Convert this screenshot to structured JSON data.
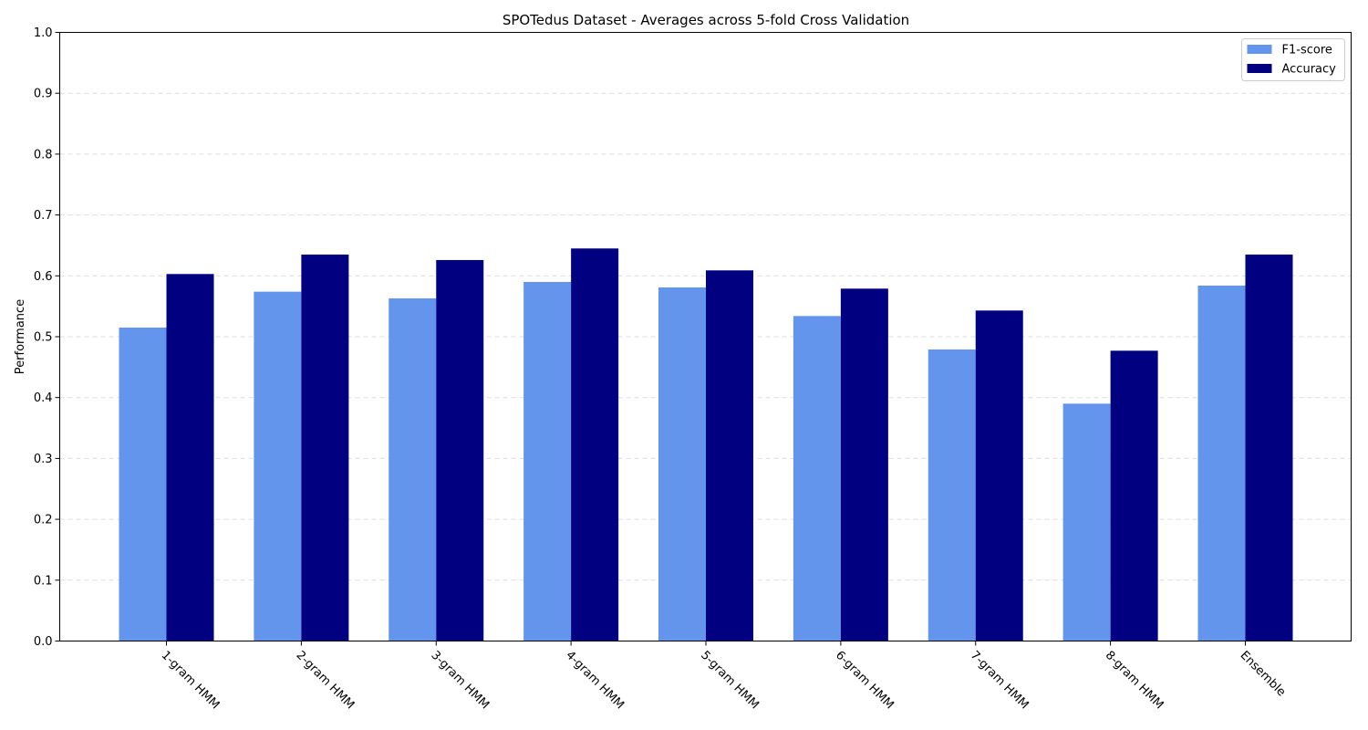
{
  "chart_data": {
    "type": "bar",
    "title": "SPOTedus Dataset - Averages across 5-fold Cross Validation",
    "xlabel": "",
    "ylabel": "Performance",
    "ylim": [
      0,
      1.0
    ],
    "yticks": [
      "0.0",
      "0.1",
      "0.2",
      "0.3",
      "0.4",
      "0.5",
      "0.6",
      "0.7",
      "0.8",
      "0.9",
      "1.0"
    ],
    "grid": true,
    "legend_position": "top-right",
    "categories": [
      "1-gram HMM",
      "2-gram HMM",
      "3-gram HMM",
      "4-gram HMM",
      "5-gram HMM",
      "6-gram HMM",
      "7-gram HMM",
      "8-gram HMM",
      "Ensemble"
    ],
    "series": [
      {
        "name": "F1-score",
        "color": "#6495ED",
        "values": [
          0.515,
          0.574,
          0.563,
          0.59,
          0.581,
          0.534,
          0.479,
          0.39,
          0.584
        ]
      },
      {
        "name": "Accuracy",
        "color": "#000080",
        "values": [
          0.603,
          0.635,
          0.626,
          0.645,
          0.609,
          0.579,
          0.543,
          0.477,
          0.635
        ]
      }
    ]
  }
}
